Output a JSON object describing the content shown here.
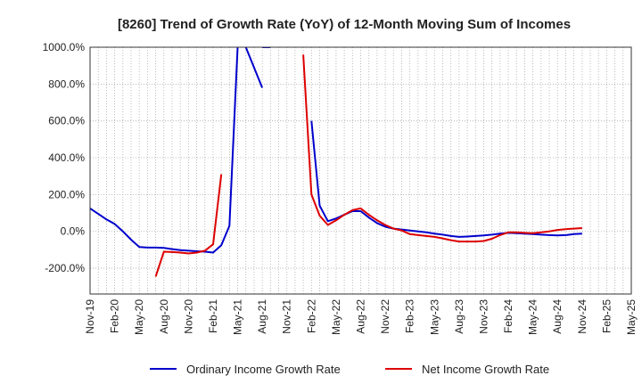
{
  "chart_data": {
    "type": "line",
    "title": "[8260]  Trend of Growth Rate (YoY) of 12-Month Moving Sum of Incomes",
    "xlabel": "",
    "ylabel": "",
    "ylim": [
      -340,
      1000
    ],
    "yticks": [
      1000,
      800,
      600,
      400,
      200,
      0,
      -200
    ],
    "ytick_labels": [
      "1000.0%",
      "800.0%",
      "600.0%",
      "400.0%",
      "200.0%",
      "0.0%",
      "-200.0%"
    ],
    "x_start": "Nov-19",
    "x_end": "May-25",
    "x_tick_labels": [
      "Nov-19",
      "Feb-20",
      "May-20",
      "Aug-20",
      "Nov-20",
      "Feb-21",
      "May-21",
      "Aug-21",
      "Nov-21",
      "Feb-22",
      "May-22",
      "Aug-22",
      "Nov-22",
      "Feb-23",
      "May-23",
      "Aug-23",
      "Nov-23",
      "Feb-24",
      "May-24",
      "Aug-24",
      "Nov-24",
      "Feb-25",
      "May-25"
    ],
    "grid": true,
    "legend_position": "bottom",
    "series": [
      {
        "name": "Ordinary Income Growth Rate",
        "color": "#0000cc",
        "segments": [
          [
            [
              "Nov-19",
              125
            ],
            [
              "Dec-19",
              95
            ],
            [
              "Jan-20",
              65
            ],
            [
              "Feb-20",
              40
            ],
            [
              "Mar-20",
              0
            ],
            [
              "Apr-20",
              -45
            ],
            [
              "May-20",
              -85
            ],
            [
              "Jun-20",
              -88
            ],
            [
              "Jul-20",
              -88
            ],
            [
              "Aug-20",
              -90
            ],
            [
              "Sep-20",
              -96
            ],
            [
              "Oct-20",
              -102
            ],
            [
              "Nov-20",
              -105
            ],
            [
              "Dec-20",
              -108
            ],
            [
              "Jan-21",
              -110
            ],
            [
              "Feb-21",
              -115
            ],
            [
              "Mar-21",
              -75
            ],
            [
              "Apr-21",
              30
            ],
            [
              "May-21",
              1000
            ]
          ],
          [
            [
              "Jun-21",
              1000
            ],
            [
              "Jul-21",
              890
            ],
            [
              "Aug-21",
              780
            ]
          ],
          [
            [
              "Aug-21",
              1000
            ],
            [
              "Sep-21",
              1000
            ]
          ],
          [
            [
              "Feb-22",
              600
            ],
            [
              "Mar-22",
              140
            ],
            [
              "Apr-22",
              55
            ],
            [
              "May-22",
              70
            ],
            [
              "Jun-22",
              90
            ],
            [
              "Jul-22",
              110
            ],
            [
              "Aug-22",
              110
            ],
            [
              "Sep-22",
              75
            ],
            [
              "Oct-22",
              45
            ],
            [
              "Nov-22",
              25
            ],
            [
              "Dec-22",
              15
            ],
            [
              "Jan-23",
              10
            ],
            [
              "Feb-23",
              5
            ],
            [
              "Mar-23",
              0
            ],
            [
              "Apr-23",
              -5
            ],
            [
              "May-23",
              -12
            ],
            [
              "Jun-23",
              -18
            ],
            [
              "Jul-23",
              -25
            ],
            [
              "Aug-23",
              -30
            ],
            [
              "Sep-23",
              -28
            ],
            [
              "Oct-23",
              -25
            ],
            [
              "Nov-23",
              -22
            ],
            [
              "Dec-23",
              -18
            ],
            [
              "Jan-24",
              -12
            ],
            [
              "Feb-24",
              -8
            ],
            [
              "Mar-24",
              -10
            ],
            [
              "Apr-24",
              -12
            ],
            [
              "May-24",
              -15
            ],
            [
              "Jun-24",
              -18
            ],
            [
              "Jul-24",
              -20
            ],
            [
              "Aug-24",
              -22
            ],
            [
              "Sep-24",
              -20
            ],
            [
              "Oct-24",
              -15
            ],
            [
              "Nov-24",
              -12
            ]
          ]
        ]
      },
      {
        "name": "Net Income Growth Rate",
        "color": "#dd0000",
        "segments": [
          [
            [
              "Jul-20",
              -245
            ],
            [
              "Aug-20",
              -110
            ],
            [
              "Sep-20",
              -112
            ],
            [
              "Oct-20",
              -115
            ],
            [
              "Nov-20",
              -120
            ],
            [
              "Dec-20",
              -115
            ],
            [
              "Jan-21",
              -105
            ],
            [
              "Feb-21",
              -70
            ],
            [
              "Mar-21",
              310
            ]
          ],
          [
            [
              "Jan-22",
              960
            ],
            [
              "Feb-22",
              200
            ],
            [
              "Mar-22",
              85
            ],
            [
              "Apr-22",
              35
            ],
            [
              "May-22",
              60
            ],
            [
              "Jun-22",
              90
            ],
            [
              "Jul-22",
              115
            ],
            [
              "Aug-22",
              125
            ],
            [
              "Sep-22",
              90
            ],
            [
              "Oct-22",
              60
            ],
            [
              "Nov-22",
              35
            ],
            [
              "Dec-22",
              15
            ],
            [
              "Jan-23",
              5
            ],
            [
              "Feb-23",
              -15
            ],
            [
              "Mar-23",
              -20
            ],
            [
              "Apr-23",
              -25
            ],
            [
              "May-23",
              -30
            ],
            [
              "Jun-23",
              -38
            ],
            [
              "Jul-23",
              -48
            ],
            [
              "Aug-23",
              -55
            ],
            [
              "Sep-23",
              -55
            ],
            [
              "Oct-23",
              -55
            ],
            [
              "Nov-23",
              -52
            ],
            [
              "Dec-23",
              -40
            ],
            [
              "Jan-24",
              -20
            ],
            [
              "Feb-24",
              -5
            ],
            [
              "Mar-24",
              -5
            ],
            [
              "Apr-24",
              -8
            ],
            [
              "May-24",
              -10
            ],
            [
              "Jun-24",
              -5
            ],
            [
              "Jul-24",
              0
            ],
            [
              "Aug-24",
              8
            ],
            [
              "Sep-24",
              12
            ],
            [
              "Oct-24",
              15
            ],
            [
              "Nov-24",
              18
            ]
          ]
        ]
      }
    ]
  }
}
